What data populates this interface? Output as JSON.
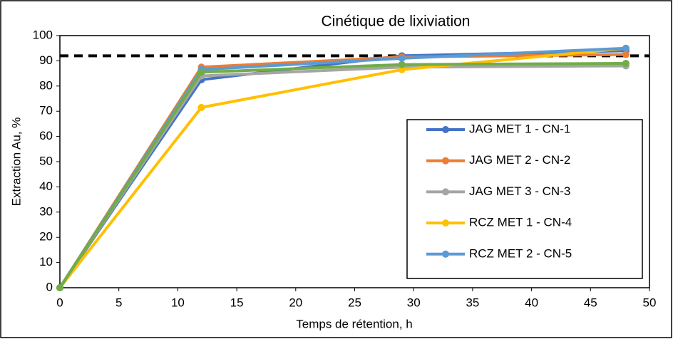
{
  "chart_data": {
    "type": "line",
    "title": "Cinétique de lixiviation",
    "x_label": "Temps de rétention, h",
    "y_label": "Extraction Au, %",
    "x": [
      0,
      12,
      29,
      48
    ],
    "series": [
      {
        "name": "JAG MET 1 - CN-1",
        "color": "#4472c4",
        "values": [
          0,
          82.5,
          92,
          94
        ]
      },
      {
        "name": "JAG MET 2 - CN-2",
        "color": "#ed7d31",
        "values": [
          0,
          87.5,
          91.5,
          92.5
        ]
      },
      {
        "name": "JAG MET 3 - CN-3",
        "color": "#a5a5a5",
        "values": [
          0,
          84,
          87.5,
          88
        ]
      },
      {
        "name": "RCZ MET 1 - CN-4",
        "color": "#ffc000",
        "values": [
          0,
          71.5,
          86.5,
          95
        ]
      },
      {
        "name": "RCZ MET 2 - CN-5",
        "color": "#5b9bd5",
        "values": [
          0,
          86.5,
          91,
          95
        ]
      },
      {
        "color": "#70ad47",
        "values": [
          0,
          85.5,
          88.5,
          89
        ]
      }
    ],
    "reference_line": {
      "value": 92,
      "color": "#000000"
    },
    "xlim": [
      0,
      50
    ],
    "xticks": [
      0,
      5,
      10,
      15,
      20,
      25,
      30,
      35,
      40,
      45,
      50
    ],
    "ylim": [
      0,
      100
    ],
    "yticks": [
      0,
      10,
      20,
      30,
      40,
      50,
      60,
      70,
      80,
      90,
      100
    ],
    "grid": false,
    "legend": "right"
  }
}
